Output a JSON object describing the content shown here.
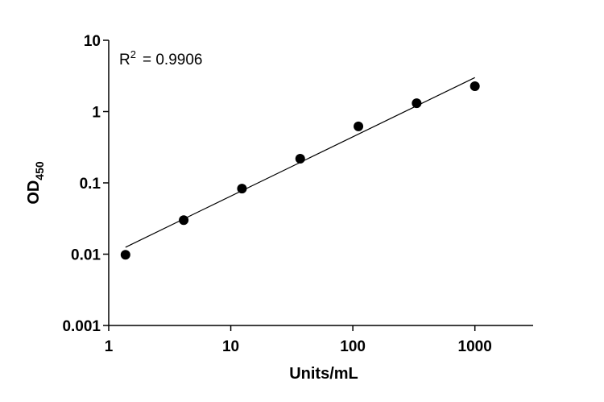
{
  "chart_data": {
    "type": "scatter",
    "x_label": "Units/mL",
    "y_label": "OD",
    "y_label_subscript": "450",
    "annotation": [
      "R",
      "2",
      "= 0.9906"
    ],
    "x": [
      1.372,
      4.115,
      12.35,
      37.04,
      111.1,
      333.3,
      1000
    ],
    "series": [
      {
        "color": "#000000",
        "values": [
          0.0098,
          0.03,
          0.083,
          0.218,
          0.62,
          1.31,
          2.27
        ]
      }
    ],
    "fit": {
      "color": "#000000",
      "x": [
        1.372,
        1000
      ],
      "values": [
        0.0125,
        3.0
      ]
    },
    "xlim": [
      1,
      3000
    ],
    "xticks": [
      1,
      10,
      100,
      1000
    ],
    "ylim": [
      0.001,
      10
    ],
    "yticks": [
      0.001,
      0.01,
      0.1,
      1,
      10
    ],
    "log_x": true,
    "log_y": true,
    "grid": false
  }
}
